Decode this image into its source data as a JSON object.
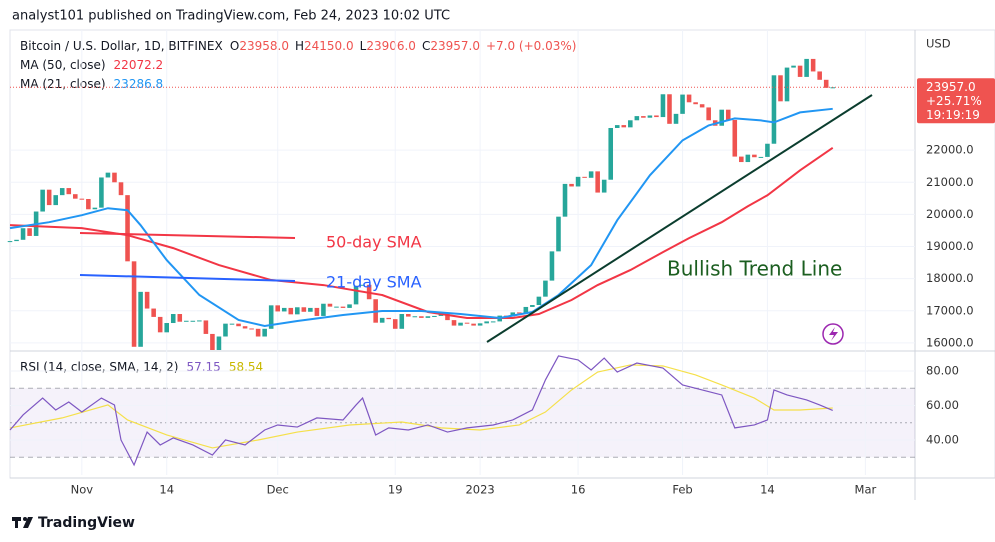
{
  "header": "analyst101 published on TradingView.com, Feb 24, 2023 10:02 UTC",
  "footer": "TradingView",
  "chart_data": {
    "type": "candlestick",
    "legend": {
      "symbol": "Bitcoin / U.S. Dollar, 1D, BITFINEX",
      "o_label": "O",
      "o": "23958.0",
      "h_label": "H",
      "h": "24150.0",
      "l_label": "L",
      "l": "23906.0",
      "c_label": "C",
      "c": "23957.0",
      "change": "+7.0 (+0.03%)",
      "ma50_label": "MA (50, close)",
      "ma50": "22072.2",
      "ma21_label": "MA (21, close)",
      "ma21": "23286.8",
      "rsi_label": "RSI (14, close, SMA, 14, 2)",
      "rsi": "57.15",
      "rsi_ma": "58.54"
    },
    "currency": "USD",
    "price_label": {
      "value": 23957.0,
      "label": "23957.0"
    },
    "price_change": "+25.71%",
    "countdown": "19:19:19",
    "annotations": {
      "sma50": "50-day SMA",
      "sma21": "21-day SMA",
      "trend": "Bullish Trend Line"
    },
    "up_color": "#26a69a",
    "down_color": "#ef5350",
    "close": [
      19170,
      19210,
      19570,
      19330,
      20090,
      20770,
      20290,
      20600,
      20820,
      20630,
      20490,
      20480,
      20160,
      20210,
      21150,
      21300,
      21000,
      20600,
      18540,
      15880,
      17590,
      17070,
      16810,
      16330,
      16620,
      16900,
      16660,
      16690,
      16690,
      16700,
      16280,
      15780,
      16200,
      16600,
      16600,
      16520,
      16450,
      16440,
      16200,
      16440,
      17170,
      16980,
      17090,
      16890,
      17110,
      16970,
      17090,
      16840,
      17220,
      17130,
      17130,
      17090,
      17200,
      17780,
      17810,
      17360,
      16630,
      16780,
      16740,
      16440,
      16900,
      16820,
      16830,
      16780,
      16830,
      16840,
      16920,
      16710,
      16540,
      16630,
      16600,
      16540,
      16610,
      16670,
      16670,
      16850,
      16830,
      16950,
      16940,
      17120,
      17180,
      17440,
      17940,
      18850,
      19930,
      20950,
      20870,
      21170,
      21140,
      21340,
      20680,
      21080,
      22690,
      22780,
      22710,
      22930,
      23060,
      23010,
      23080,
      23030,
      23740,
      22820,
      23130,
      23730,
      23490,
      23430,
      23330,
      22930,
      22760,
      23260,
      22940,
      21800,
      21630,
      21860,
      21780,
      21790,
      22200,
      24330,
      23520,
      24570,
      24630,
      24280,
      24840,
      24450,
      24190,
      23940,
      23957
    ],
    "ma21": {
      "name": "MA (21, close)",
      "color": "#2196f3",
      "x": [
        0,
        6,
        11,
        15,
        18,
        20,
        24,
        29,
        35,
        39,
        44,
        51,
        57,
        63,
        69,
        75,
        80,
        84,
        89,
        93,
        98,
        103,
        107,
        111,
        115,
        117,
        121,
        126
      ],
      "values": [
        19572,
        19758,
        19976,
        20193,
        20131,
        19665,
        18578,
        17491,
        16714,
        16528,
        16683,
        16870,
        16994,
        16994,
        16901,
        16777,
        16963,
        17491,
        18423,
        19820,
        21218,
        22305,
        22771,
        22989,
        22926,
        22864,
        23175,
        23286.8
      ]
    },
    "ma50": {
      "name": "MA (50, close)",
      "color": "#f23645",
      "x": [
        0,
        11,
        18,
        25,
        32,
        40,
        48,
        57,
        64,
        70,
        77,
        81,
        86,
        90,
        95,
        100,
        104,
        109,
        113,
        116,
        121,
        126
      ],
      "values": [
        19665,
        19572,
        19354,
        18951,
        18423,
        17957,
        17801,
        17491,
        16963,
        16777,
        16777,
        16901,
        17336,
        17801,
        18267,
        18826,
        19261,
        19758,
        20255,
        20597,
        21373,
        22072.2
      ]
    },
    "xlim": [
      0,
      138.6
    ],
    "xticks": [
      {
        "value": 11,
        "label": "Nov"
      },
      {
        "value": 24,
        "label": "14"
      },
      {
        "value": 41,
        "label": "Dec"
      },
      {
        "value": 59,
        "label": "19"
      },
      {
        "value": 72,
        "label": "2023"
      },
      {
        "value": 87,
        "label": "16"
      },
      {
        "value": 103,
        "label": "Feb"
      },
      {
        "value": 116,
        "label": "14"
      },
      {
        "value": 131,
        "label": "Mar"
      }
    ],
    "ylim": [
      15780,
      25740
    ],
    "yticks": [
      {
        "value": 16000,
        "label": "16000.0"
      },
      {
        "value": 17000,
        "label": "17000.0"
      },
      {
        "value": 18000,
        "label": "18000.0"
      },
      {
        "value": 19000,
        "label": "19000.0"
      },
      {
        "value": 20000,
        "label": "20000.0"
      },
      {
        "value": 21000,
        "label": "21000.0"
      },
      {
        "value": 22000,
        "label": "22000.0"
      }
    ],
    "rsi": {
      "name": "RSI",
      "color": "#7e57c2",
      "x": [
        0,
        2,
        5,
        7,
        9,
        11,
        14,
        16,
        17,
        19,
        21,
        23,
        25,
        28,
        31,
        33,
        36,
        39,
        41,
        44,
        47,
        51,
        53,
        54,
        56,
        58,
        61,
        64,
        67,
        70,
        74,
        77,
        80,
        82,
        84,
        87,
        89,
        91,
        93,
        96,
        100,
        103,
        106,
        109,
        111,
        114,
        116,
        117,
        119,
        122,
        124,
        126
      ],
      "values": [
        45.8,
        54.5,
        64.3,
        57.4,
        62.0,
        56.2,
        64.3,
        60.3,
        40,
        25.5,
        44.6,
        37.1,
        41.2,
        37.1,
        31.3,
        40,
        37.1,
        45.8,
        48.7,
        47.5,
        52.8,
        51.6,
        60.3,
        64.3,
        42.9,
        47.0,
        45.8,
        48.7,
        44.6,
        47.0,
        48.7,
        51.6,
        57.4,
        74.8,
        88.7,
        86.4,
        80.6,
        87.5,
        79.4,
        84.6,
        81.7,
        71.9,
        69.0,
        66.1,
        47.0,
        48.7,
        51.6,
        69.0,
        66.1,
        63.2,
        60.3,
        57.15
      ]
    },
    "rsi_ma": {
      "name": "RSI SMA",
      "color": "#f5e04a",
      "x": [
        0,
        8,
        15,
        18,
        24,
        31,
        38,
        44,
        52,
        60,
        66,
        72,
        78,
        82,
        86,
        90,
        95,
        100,
        105,
        109,
        114,
        117,
        121,
        126
      ],
      "values": [
        47.0,
        52.8,
        60.3,
        51.6,
        42.9,
        35.4,
        40,
        44.6,
        48.7,
        50.4,
        47.0,
        45.8,
        48.7,
        56.2,
        69.0,
        79.4,
        83.5,
        82.9,
        77.7,
        71.9,
        64.3,
        57.4,
        57.4,
        58.54
      ]
    },
    "rsi_lim": [
      19.7,
      91.0
    ],
    "rsi_ticks": [
      {
        "value": 40,
        "label": "40.00"
      },
      {
        "value": 60,
        "label": "60.00"
      },
      {
        "value": 80,
        "label": "80.00"
      }
    ],
    "rsi_bands": [
      30,
      50,
      70
    ]
  }
}
